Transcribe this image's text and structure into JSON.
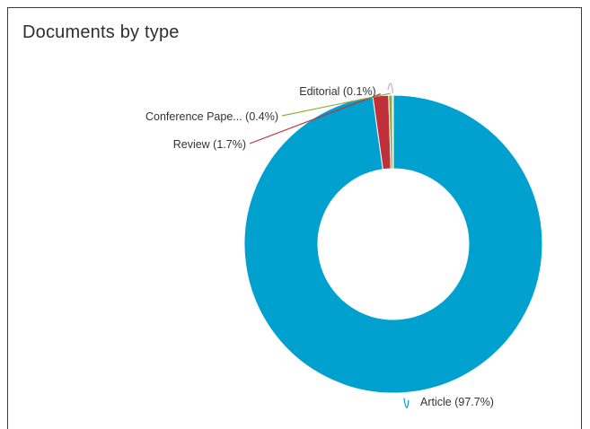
{
  "panel": {
    "title": "Documents by type"
  },
  "chart_data": {
    "type": "pie",
    "style": "donut",
    "title": "Documents by type",
    "slices": [
      {
        "label": "Article (97.7%)",
        "category": "Article",
        "percent": 97.7,
        "color": "#00a0cf"
      },
      {
        "label": "Review (1.7%)",
        "category": "Review",
        "percent": 1.7,
        "color": "#c0303a"
      },
      {
        "label": "Conference Pape... (0.4%)",
        "category": "Conference Pape...",
        "percent": 0.4,
        "color": "#8fae3b"
      },
      {
        "label": "Editorial (0.1%)",
        "category": "Editorial",
        "percent": 0.1,
        "color": "#c8a8d8"
      }
    ],
    "legend": "none"
  }
}
